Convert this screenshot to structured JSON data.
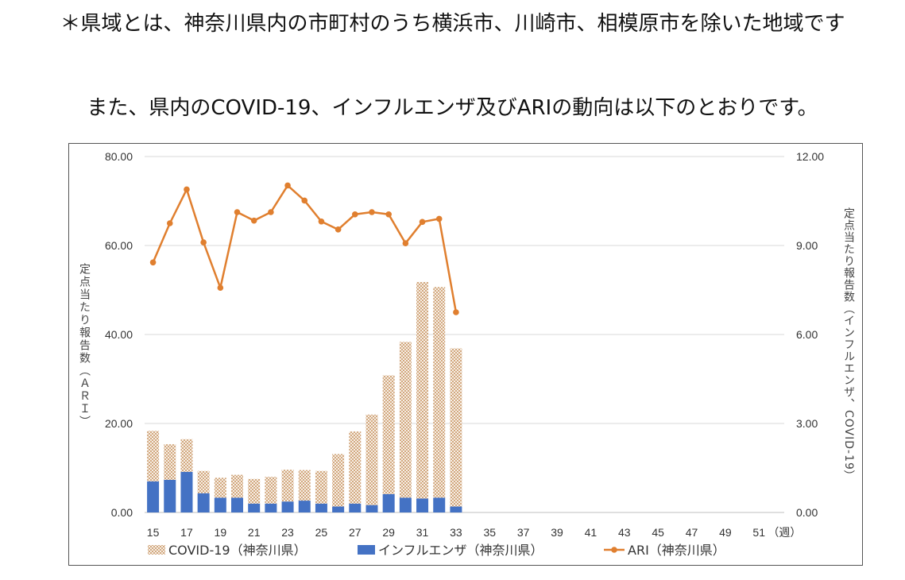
{
  "text": {
    "note": "＊県域とは、神奈川県内の市町村のうち横浜市、川崎市、相模原市を除いた地域です",
    "intro": "また、県内のCOVID-19、インフルエンザ及びARIの動向は以下のとおりです。"
  },
  "colors": {
    "covid": "#d9b99b",
    "flu": "#4472c4",
    "ari": "#e07f2f",
    "grid": "#d9d9d9"
  },
  "chart_data": {
    "type": "bar",
    "x_weeks": [
      15,
      16,
      17,
      18,
      19,
      20,
      21,
      22,
      23,
      24,
      25,
      26,
      27,
      28,
      29,
      30,
      31,
      32,
      33
    ],
    "x_tick_labels": [
      "15",
      "17",
      "19",
      "21",
      "23",
      "25",
      "27",
      "29",
      "31",
      "33",
      "35",
      "37",
      "39",
      "41",
      "43",
      "45",
      "47",
      "49",
      "51"
    ],
    "x_unit_label": "（週）",
    "x_range": [
      15,
      52
    ],
    "y_left": {
      "label": "定点当たり報告数（ＡＲＩ）",
      "range": [
        0,
        80
      ],
      "ticks": [
        "0.00",
        "20.00",
        "40.00",
        "60.00",
        "80.00"
      ]
    },
    "y_right": {
      "label": "定点当たり報告数（インフルエンザ、COVID-19）",
      "range": [
        0,
        12
      ],
      "ticks": [
        "0.00",
        "3.00",
        "6.00",
        "9.00",
        "12.00"
      ]
    },
    "grid": true,
    "legend_position": "bottom",
    "series": [
      {
        "name": "COVID-19（神奈川県）",
        "type": "bar",
        "axis": "right",
        "values": [
          1.7,
          1.2,
          1.1,
          0.75,
          0.67,
          0.77,
          0.83,
          0.9,
          1.07,
          1.03,
          1.1,
          1.77,
          2.43,
          3.05,
          4.0,
          5.25,
          7.3,
          7.1,
          5.33
        ]
      },
      {
        "name": "インフルエンザ（神奈川県）",
        "type": "bar",
        "axis": "right",
        "values": [
          1.05,
          1.1,
          1.37,
          0.65,
          0.5,
          0.5,
          0.3,
          0.3,
          0.37,
          0.4,
          0.3,
          0.2,
          0.3,
          0.25,
          0.62,
          0.5,
          0.47,
          0.5,
          0.2
        ]
      },
      {
        "name": "ARI（神奈川県）",
        "type": "line",
        "axis": "left",
        "values": [
          56.2,
          65.0,
          72.6,
          60.7,
          50.5,
          67.5,
          65.6,
          67.5,
          73.5,
          70.1,
          65.4,
          63.6,
          67.0,
          67.5,
          67.0,
          60.5,
          65.3,
          66.0,
          45.0
        ]
      }
    ]
  }
}
